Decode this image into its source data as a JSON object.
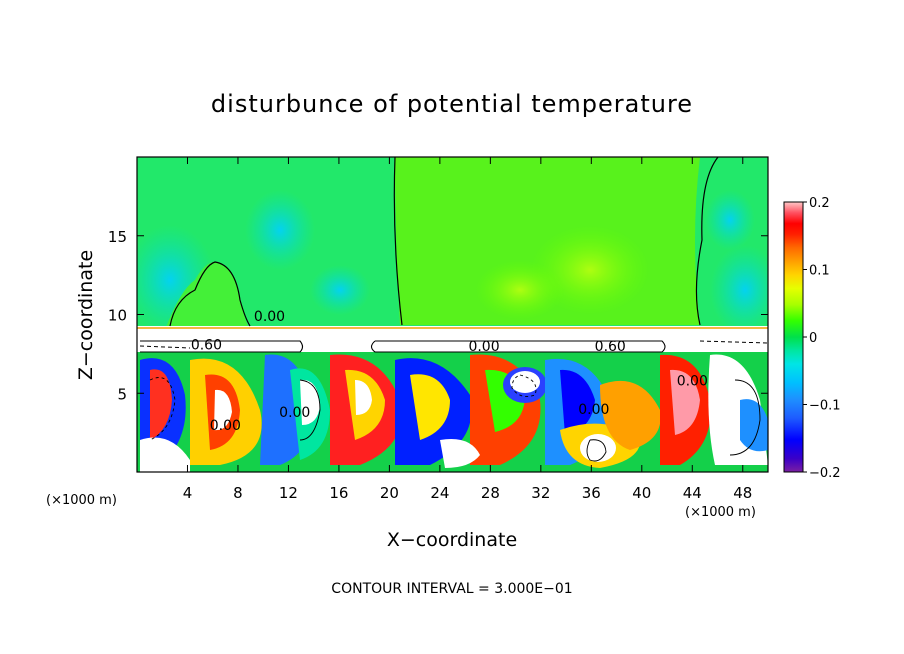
{
  "chart_data": {
    "type": "heatmap",
    "title": "disturbunce of potential temperature",
    "xlabel": "X−coordinate",
    "ylabel": "Z−coordinate",
    "x_unit_left": "(×1000 m)",
    "x_unit_right": "(×1000 m)",
    "footer": "CONTOUR INTERVAL = 3.000E−01",
    "xlim": [
      0,
      50
    ],
    "ylim": [
      0,
      20
    ],
    "x_ticks": [
      4,
      8,
      12,
      16,
      20,
      24,
      28,
      32,
      36,
      40,
      44,
      48
    ],
    "y_ticks": [
      5,
      10,
      15
    ],
    "colorbar": {
      "min": -0.2,
      "max": 0.2,
      "tick_values": [
        0.2,
        0.1,
        0,
        -0.1,
        -0.2
      ],
      "tick_labels": [
        "0.2",
        "0.1",
        "0",
        "−0.1",
        "−0.2"
      ],
      "colors": [
        "#7b1fa2",
        "#3a00c8",
        "#0000ff",
        "#1e5cff",
        "#1e90ff",
        "#00bfff",
        "#00e5e5",
        "#00e6a0",
        "#00e04a",
        "#33ff00",
        "#a8ff00",
        "#e6ff00",
        "#ffd400",
        "#ffa000",
        "#ff6a00",
        "#ff2000",
        "#ff0000",
        "#ff5060",
        "#ff9aa8",
        "#ffc8c8"
      ]
    },
    "contour_labels": [
      {
        "text": "0.00",
        "x": 10.5,
        "z": 9.9
      },
      {
        "text": "0.60",
        "x": 5.5,
        "z": 8.1
      },
      {
        "text": "0.00",
        "x": 27.5,
        "z": 8.0
      },
      {
        "text": "0.60",
        "x": 37.5,
        "z": 8.0
      },
      {
        "text": "0.00",
        "x": 36.2,
        "z": 4.0
      },
      {
        "text": "0.00",
        "x": 7.0,
        "z": 3.0
      },
      {
        "text": "0.00",
        "x": 12.5,
        "z": 3.8
      },
      {
        "text": "0.00",
        "x": 44.0,
        "z": 5.8
      }
    ]
  }
}
